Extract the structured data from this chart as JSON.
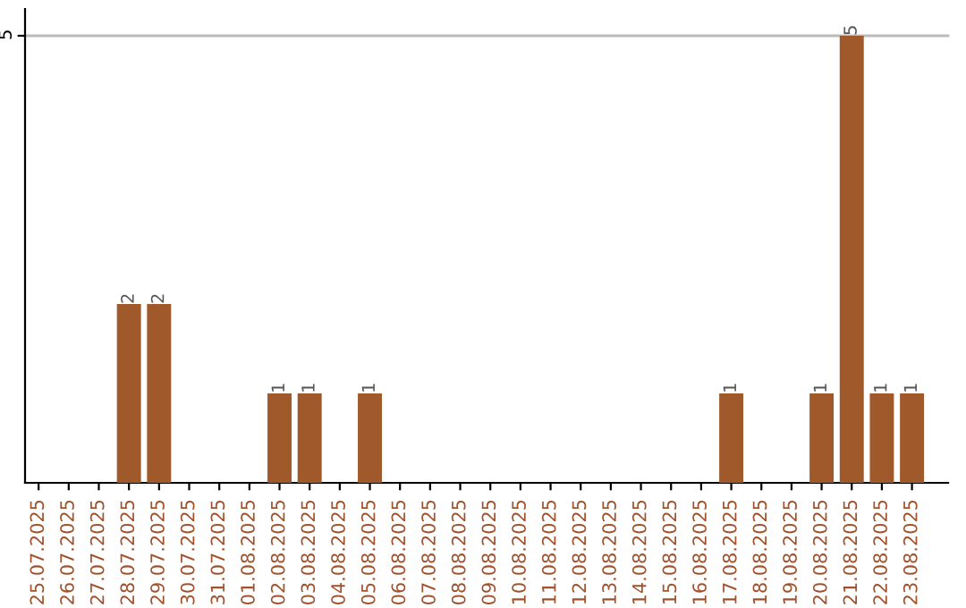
{
  "chart_data": {
    "type": "bar",
    "categories": [
      "25.07.2025",
      "26.07.2025",
      "27.07.2025",
      "28.07.2025",
      "29.07.2025",
      "30.07.2025",
      "31.07.2025",
      "01.08.2025",
      "02.08.2025",
      "03.08.2025",
      "04.08.2025",
      "05.08.2025",
      "06.08.2025",
      "07.08.2025",
      "08.08.2025",
      "09.08.2025",
      "10.08.2025",
      "11.08.2025",
      "12.08.2025",
      "13.08.2025",
      "14.08.2025",
      "15.08.2025",
      "16.08.2025",
      "17.08.2025",
      "18.08.2025",
      "19.08.2025",
      "20.08.2025",
      "21.08.2025",
      "22.08.2025",
      "23.08.2025"
    ],
    "values": [
      0,
      0,
      0,
      2,
      2,
      0,
      0,
      0,
      1,
      1,
      0,
      1,
      0,
      0,
      0,
      0,
      0,
      0,
      0,
      0,
      0,
      0,
      0,
      1,
      0,
      0,
      1,
      5,
      1,
      1
    ],
    "value_labels": [
      null,
      null,
      null,
      "2",
      "2",
      null,
      null,
      null,
      "1",
      "1",
      null,
      "1",
      null,
      null,
      null,
      null,
      null,
      null,
      null,
      null,
      null,
      null,
      null,
      "1",
      null,
      null,
      "1",
      "5",
      "1",
      "1"
    ],
    "color": "#a0592b",
    "ylim": [
      0,
      5.3
    ],
    "yticks": [
      5
    ],
    "grid": "y"
  }
}
